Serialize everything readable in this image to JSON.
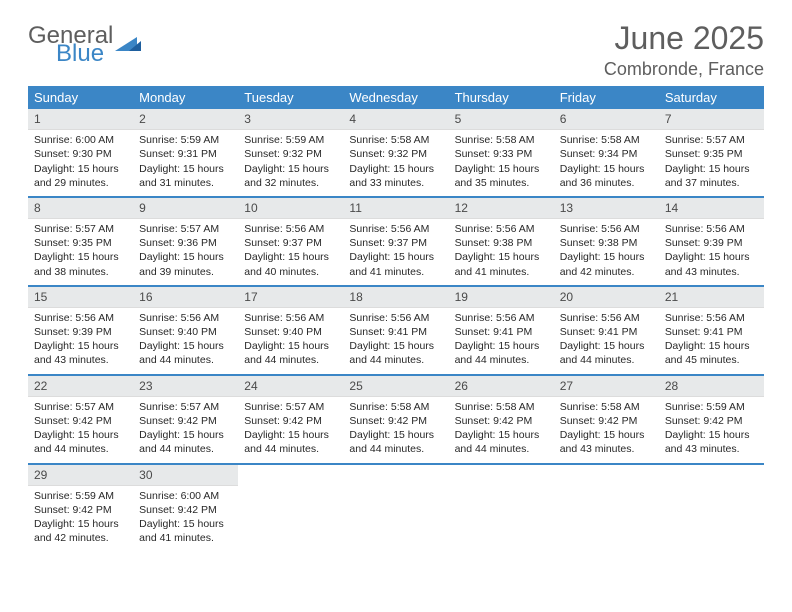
{
  "logo": {
    "general": "General",
    "blue": "Blue"
  },
  "title": "June 2025",
  "location": "Combronde, France",
  "header_bg": "#3b86c6",
  "daynum_bg": "#e7e9ea",
  "weekdays": [
    "Sunday",
    "Monday",
    "Tuesday",
    "Wednesday",
    "Thursday",
    "Friday",
    "Saturday"
  ],
  "days": [
    {
      "n": 1,
      "sunrise": "6:00 AM",
      "sunset": "9:30 PM",
      "daylight": "15 hours and 29 minutes."
    },
    {
      "n": 2,
      "sunrise": "5:59 AM",
      "sunset": "9:31 PM",
      "daylight": "15 hours and 31 minutes."
    },
    {
      "n": 3,
      "sunrise": "5:59 AM",
      "sunset": "9:32 PM",
      "daylight": "15 hours and 32 minutes."
    },
    {
      "n": 4,
      "sunrise": "5:58 AM",
      "sunset": "9:32 PM",
      "daylight": "15 hours and 33 minutes."
    },
    {
      "n": 5,
      "sunrise": "5:58 AM",
      "sunset": "9:33 PM",
      "daylight": "15 hours and 35 minutes."
    },
    {
      "n": 6,
      "sunrise": "5:58 AM",
      "sunset": "9:34 PM",
      "daylight": "15 hours and 36 minutes."
    },
    {
      "n": 7,
      "sunrise": "5:57 AM",
      "sunset": "9:35 PM",
      "daylight": "15 hours and 37 minutes."
    },
    {
      "n": 8,
      "sunrise": "5:57 AM",
      "sunset": "9:35 PM",
      "daylight": "15 hours and 38 minutes."
    },
    {
      "n": 9,
      "sunrise": "5:57 AM",
      "sunset": "9:36 PM",
      "daylight": "15 hours and 39 minutes."
    },
    {
      "n": 10,
      "sunrise": "5:56 AM",
      "sunset": "9:37 PM",
      "daylight": "15 hours and 40 minutes."
    },
    {
      "n": 11,
      "sunrise": "5:56 AM",
      "sunset": "9:37 PM",
      "daylight": "15 hours and 41 minutes."
    },
    {
      "n": 12,
      "sunrise": "5:56 AM",
      "sunset": "9:38 PM",
      "daylight": "15 hours and 41 minutes."
    },
    {
      "n": 13,
      "sunrise": "5:56 AM",
      "sunset": "9:38 PM",
      "daylight": "15 hours and 42 minutes."
    },
    {
      "n": 14,
      "sunrise": "5:56 AM",
      "sunset": "9:39 PM",
      "daylight": "15 hours and 43 minutes."
    },
    {
      "n": 15,
      "sunrise": "5:56 AM",
      "sunset": "9:39 PM",
      "daylight": "15 hours and 43 minutes."
    },
    {
      "n": 16,
      "sunrise": "5:56 AM",
      "sunset": "9:40 PM",
      "daylight": "15 hours and 44 minutes."
    },
    {
      "n": 17,
      "sunrise": "5:56 AM",
      "sunset": "9:40 PM",
      "daylight": "15 hours and 44 minutes."
    },
    {
      "n": 18,
      "sunrise": "5:56 AM",
      "sunset": "9:41 PM",
      "daylight": "15 hours and 44 minutes."
    },
    {
      "n": 19,
      "sunrise": "5:56 AM",
      "sunset": "9:41 PM",
      "daylight": "15 hours and 44 minutes."
    },
    {
      "n": 20,
      "sunrise": "5:56 AM",
      "sunset": "9:41 PM",
      "daylight": "15 hours and 44 minutes."
    },
    {
      "n": 21,
      "sunrise": "5:56 AM",
      "sunset": "9:41 PM",
      "daylight": "15 hours and 45 minutes."
    },
    {
      "n": 22,
      "sunrise": "5:57 AM",
      "sunset": "9:42 PM",
      "daylight": "15 hours and 44 minutes."
    },
    {
      "n": 23,
      "sunrise": "5:57 AM",
      "sunset": "9:42 PM",
      "daylight": "15 hours and 44 minutes."
    },
    {
      "n": 24,
      "sunrise": "5:57 AM",
      "sunset": "9:42 PM",
      "daylight": "15 hours and 44 minutes."
    },
    {
      "n": 25,
      "sunrise": "5:58 AM",
      "sunset": "9:42 PM",
      "daylight": "15 hours and 44 minutes."
    },
    {
      "n": 26,
      "sunrise": "5:58 AM",
      "sunset": "9:42 PM",
      "daylight": "15 hours and 44 minutes."
    },
    {
      "n": 27,
      "sunrise": "5:58 AM",
      "sunset": "9:42 PM",
      "daylight": "15 hours and 43 minutes."
    },
    {
      "n": 28,
      "sunrise": "5:59 AM",
      "sunset": "9:42 PM",
      "daylight": "15 hours and 43 minutes."
    },
    {
      "n": 29,
      "sunrise": "5:59 AM",
      "sunset": "9:42 PM",
      "daylight": "15 hours and 42 minutes."
    },
    {
      "n": 30,
      "sunrise": "6:00 AM",
      "sunset": "9:42 PM",
      "daylight": "15 hours and 41 minutes."
    }
  ],
  "labels": {
    "sunrise": "Sunrise:",
    "sunset": "Sunset:",
    "daylight": "Daylight:"
  }
}
